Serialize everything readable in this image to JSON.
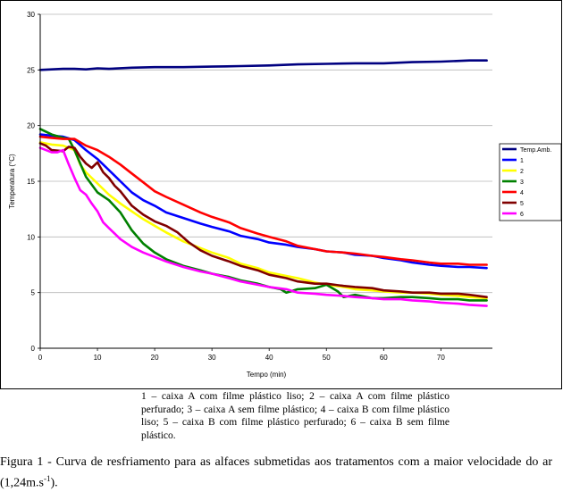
{
  "chart_data": {
    "type": "line",
    "title": "",
    "xlabel": "Tempo (min)",
    "ylabel": "Temperatura (°C)",
    "xlim": [
      0,
      79
    ],
    "ylim": [
      0,
      30
    ],
    "x_ticks": [
      0,
      10,
      20,
      30,
      40,
      50,
      60,
      70
    ],
    "y_ticks": [
      0,
      5,
      10,
      15,
      20,
      25,
      30
    ],
    "grid": "horizontal",
    "legend_position": "right",
    "series": [
      {
        "name": "Temp.Amb.",
        "color": "#000080",
        "x": [
          0,
          2,
          4,
          6,
          8,
          10,
          12,
          16,
          20,
          25,
          30,
          35,
          40,
          45,
          50,
          55,
          60,
          65,
          70,
          75,
          78
        ],
        "y": [
          25.0,
          25.05,
          25.1,
          25.1,
          25.05,
          25.15,
          25.1,
          25.2,
          25.25,
          25.25,
          25.3,
          25.35,
          25.4,
          25.5,
          25.55,
          25.6,
          25.6,
          25.7,
          25.75,
          25.85,
          25.85
        ]
      },
      {
        "name": "1",
        "color": "#0000ff",
        "x": [
          0,
          2,
          4,
          6,
          8,
          10,
          12,
          14,
          16,
          18,
          20,
          22,
          25,
          28,
          30,
          33,
          35,
          38,
          40,
          43,
          45,
          48,
          50,
          53,
          55,
          58,
          60,
          63,
          65,
          68,
          70,
          73,
          75,
          78
        ],
        "y": [
          19.2,
          19.1,
          19.0,
          18.7,
          17.8,
          17.0,
          16.0,
          15.0,
          14.0,
          13.3,
          12.8,
          12.2,
          11.7,
          11.2,
          10.9,
          10.5,
          10.1,
          9.8,
          9.5,
          9.3,
          9.1,
          8.9,
          8.7,
          8.6,
          8.4,
          8.3,
          8.1,
          7.9,
          7.7,
          7.5,
          7.4,
          7.3,
          7.3,
          7.2
        ]
      },
      {
        "name": "2",
        "color": "#ffff00",
        "x": [
          0,
          2,
          4,
          6,
          7,
          8,
          10,
          12,
          14,
          16,
          18,
          20,
          22,
          25,
          28,
          30,
          33,
          35,
          38,
          40,
          43,
          45,
          48,
          50,
          53,
          55,
          58,
          60,
          63,
          65,
          68,
          70,
          73,
          75,
          78
        ],
        "y": [
          18.5,
          18.3,
          18.2,
          17.8,
          16.5,
          15.8,
          14.8,
          13.8,
          13.0,
          12.3,
          11.6,
          11.0,
          10.4,
          9.6,
          9.0,
          8.6,
          8.1,
          7.6,
          7.2,
          6.8,
          6.5,
          6.3,
          5.9,
          5.7,
          5.5,
          5.3,
          5.2,
          5.1,
          5.0,
          5.0,
          4.9,
          4.8,
          4.7,
          4.6,
          4.5
        ]
      },
      {
        "name": "3",
        "color": "#008000",
        "x": [
          0,
          2,
          4,
          5,
          6,
          7,
          8,
          10,
          12,
          14,
          16,
          18,
          20,
          22,
          25,
          28,
          30,
          33,
          35,
          38,
          40,
          42,
          43,
          45,
          48,
          50,
          52,
          53,
          55,
          58,
          60,
          63,
          65,
          68,
          70,
          73,
          75,
          78
        ],
        "y": [
          19.7,
          19.2,
          18.9,
          18.8,
          17.8,
          16.6,
          15.4,
          14.0,
          13.3,
          12.2,
          10.6,
          9.4,
          8.6,
          8.0,
          7.4,
          7.0,
          6.7,
          6.4,
          6.1,
          5.8,
          5.5,
          5.3,
          5.0,
          5.3,
          5.4,
          5.7,
          5.1,
          4.6,
          4.8,
          4.5,
          4.5,
          4.6,
          4.6,
          4.5,
          4.4,
          4.4,
          4.3,
          4.3
        ]
      },
      {
        "name": "4",
        "color": "#ff0000",
        "x": [
          0,
          2,
          4,
          6,
          7,
          8,
          10,
          12,
          14,
          16,
          18,
          20,
          22,
          25,
          28,
          30,
          33,
          35,
          38,
          40,
          43,
          45,
          48,
          50,
          53,
          55,
          58,
          60,
          63,
          65,
          68,
          70,
          73,
          75,
          78
        ],
        "y": [
          19.0,
          18.9,
          18.8,
          18.8,
          18.5,
          18.2,
          17.8,
          17.2,
          16.5,
          15.7,
          14.9,
          14.1,
          13.6,
          12.9,
          12.2,
          11.8,
          11.3,
          10.8,
          10.3,
          10.0,
          9.6,
          9.2,
          8.9,
          8.7,
          8.6,
          8.5,
          8.3,
          8.2,
          8.0,
          7.9,
          7.7,
          7.6,
          7.6,
          7.5,
          7.5
        ]
      },
      {
        "name": "5",
        "color": "#800000",
        "x": [
          0,
          1,
          2,
          4,
          5,
          6,
          7,
          8,
          9,
          10,
          11,
          12,
          13,
          14,
          16,
          18,
          20,
          22,
          24,
          26,
          28,
          30,
          33,
          35,
          38,
          40,
          43,
          45,
          48,
          50,
          53,
          55,
          58,
          60,
          63,
          65,
          68,
          70,
          73,
          75,
          78
        ],
        "y": [
          18.4,
          18.2,
          17.8,
          17.7,
          18.1,
          18.0,
          17.2,
          16.6,
          16.2,
          16.7,
          15.8,
          15.3,
          14.6,
          14.1,
          12.8,
          12.0,
          11.4,
          11.0,
          10.4,
          9.5,
          8.8,
          8.3,
          7.8,
          7.4,
          7.0,
          6.6,
          6.3,
          6.0,
          5.8,
          5.8,
          5.6,
          5.5,
          5.4,
          5.2,
          5.1,
          5.0,
          5.0,
          4.9,
          4.9,
          4.8,
          4.6
        ]
      },
      {
        "name": "6",
        "color": "#ff00ff",
        "x": [
          0,
          2,
          3,
          4,
          5,
          6,
          7,
          8,
          9,
          10,
          11,
          12,
          14,
          16,
          18,
          20,
          22,
          25,
          28,
          30,
          33,
          35,
          38,
          40,
          43,
          45,
          48,
          50,
          53,
          55,
          58,
          60,
          63,
          65,
          68,
          70,
          73,
          75,
          78
        ],
        "y": [
          18.0,
          17.6,
          17.6,
          17.8,
          16.5,
          15.3,
          14.2,
          13.8,
          13.0,
          12.3,
          11.3,
          10.8,
          9.8,
          9.1,
          8.6,
          8.2,
          7.8,
          7.3,
          6.9,
          6.7,
          6.3,
          6.0,
          5.7,
          5.5,
          5.3,
          5.0,
          4.9,
          4.8,
          4.7,
          4.6,
          4.5,
          4.4,
          4.4,
          4.3,
          4.2,
          4.1,
          4.0,
          3.9,
          3.8
        ]
      }
    ]
  },
  "caption": {
    "legend_text": "1 – caixa A  com filme plástico liso; 2 – caixa A com filme plástico perfurado; 3 – caixa A sem filme plástico; 4 – caixa B com filme plástico liso; 5 – caixa B com filme plástico perfurado; 6 – caixa B sem filme plástico.",
    "figure_text": "Figura 1 - Curva de resfriamento para as alfaces submetidas aos tratamentos com a maior velocidade do ar (1,24m.s",
    "figure_superscript": "-1",
    "figure_end": ")."
  }
}
